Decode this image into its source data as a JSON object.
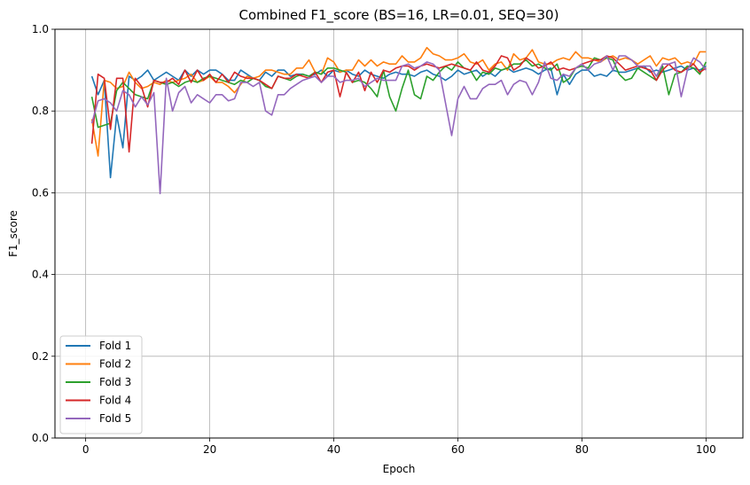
{
  "chart_data": {
    "type": "line",
    "title": "Combined F1_score (BS=16, LR=0.01, SEQ=30)",
    "xlabel": "Epoch",
    "ylabel": "F1_score",
    "xlim": [
      -4.95,
      105.95
    ],
    "ylim": [
      0.0,
      1.0
    ],
    "xticks": [
      0,
      20,
      40,
      60,
      80,
      100
    ],
    "yticks": [
      0.0,
      0.2,
      0.4,
      0.6,
      0.8,
      1.0
    ],
    "xtick_labels": [
      "0",
      "20",
      "40",
      "60",
      "80",
      "100"
    ],
    "ytick_labels": [
      "0.0",
      "0.2",
      "0.4",
      "0.6",
      "0.8",
      "1.0"
    ],
    "grid": true,
    "legend": "lower-left",
    "series": [
      {
        "name": "Fold 1",
        "color": "#1f77b4",
        "values": [
          0.885,
          0.84,
          0.875,
          0.637,
          0.79,
          0.71,
          0.885,
          0.875,
          0.885,
          0.9,
          0.875,
          0.885,
          0.895,
          0.885,
          0.875,
          0.9,
          0.885,
          0.9,
          0.89,
          0.9,
          0.9,
          0.89,
          0.875,
          0.875,
          0.9,
          0.89,
          0.88,
          0.875,
          0.895,
          0.885,
          0.9,
          0.9,
          0.885,
          0.89,
          0.89,
          0.885,
          0.89,
          0.9,
          0.885,
          0.9,
          0.895,
          0.9,
          0.89,
          0.885,
          0.9,
          0.89,
          0.885,
          0.88,
          0.89,
          0.895,
          0.89,
          0.89,
          0.885,
          0.895,
          0.9,
          0.89,
          0.885,
          0.875,
          0.885,
          0.9,
          0.89,
          0.895,
          0.9,
          0.885,
          0.895,
          0.885,
          0.9,
          0.905,
          0.895,
          0.9,
          0.905,
          0.9,
          0.89,
          0.9,
          0.905,
          0.84,
          0.89,
          0.865,
          0.89,
          0.9,
          0.9,
          0.885,
          0.89,
          0.885,
          0.9,
          0.895,
          0.895,
          0.9,
          0.905,
          0.91,
          0.895,
          0.9,
          0.895,
          0.9,
          0.905,
          0.91,
          0.9,
          0.905,
          0.9,
          0.91
        ]
      },
      {
        "name": "Fold 2",
        "color": "#ff7f0e",
        "values": [
          0.78,
          0.69,
          0.875,
          0.87,
          0.855,
          0.86,
          0.895,
          0.87,
          0.855,
          0.86,
          0.87,
          0.865,
          0.875,
          0.87,
          0.875,
          0.88,
          0.89,
          0.87,
          0.875,
          0.885,
          0.87,
          0.87,
          0.86,
          0.845,
          0.865,
          0.885,
          0.88,
          0.885,
          0.9,
          0.9,
          0.895,
          0.89,
          0.89,
          0.905,
          0.905,
          0.925,
          0.895,
          0.89,
          0.93,
          0.92,
          0.895,
          0.9,
          0.9,
          0.925,
          0.91,
          0.925,
          0.91,
          0.92,
          0.915,
          0.915,
          0.935,
          0.92,
          0.92,
          0.93,
          0.955,
          0.94,
          0.935,
          0.925,
          0.925,
          0.93,
          0.94,
          0.92,
          0.915,
          0.925,
          0.9,
          0.915,
          0.92,
          0.9,
          0.94,
          0.925,
          0.93,
          0.95,
          0.92,
          0.915,
          0.915,
          0.925,
          0.93,
          0.925,
          0.945,
          0.93,
          0.93,
          0.925,
          0.92,
          0.93,
          0.935,
          0.925,
          0.93,
          0.925,
          0.915,
          0.925,
          0.935,
          0.91,
          0.93,
          0.925,
          0.93,
          0.915,
          0.92,
          0.915,
          0.945,
          0.945
        ]
      },
      {
        "name": "Fold 3",
        "color": "#2ca02c",
        "values": [
          0.835,
          0.76,
          0.765,
          0.77,
          0.85,
          0.87,
          0.855,
          0.84,
          0.835,
          0.83,
          0.875,
          0.87,
          0.865,
          0.87,
          0.86,
          0.87,
          0.875,
          0.87,
          0.88,
          0.885,
          0.88,
          0.875,
          0.87,
          0.865,
          0.875,
          0.87,
          0.88,
          0.875,
          0.86,
          0.855,
          0.885,
          0.88,
          0.875,
          0.885,
          0.89,
          0.885,
          0.895,
          0.89,
          0.905,
          0.905,
          0.9,
          0.895,
          0.87,
          0.875,
          0.87,
          0.855,
          0.835,
          0.9,
          0.835,
          0.8,
          0.855,
          0.9,
          0.84,
          0.83,
          0.885,
          0.875,
          0.895,
          0.91,
          0.9,
          0.92,
          0.905,
          0.9,
          0.875,
          0.895,
          0.89,
          0.905,
          0.9,
          0.905,
          0.915,
          0.915,
          0.925,
          0.91,
          0.915,
          0.905,
          0.9,
          0.915,
          0.87,
          0.88,
          0.905,
          0.91,
          0.905,
          0.93,
          0.925,
          0.93,
          0.925,
          0.89,
          0.875,
          0.88,
          0.905,
          0.895,
          0.885,
          0.875,
          0.91,
          0.84,
          0.89,
          0.895,
          0.91,
          0.905,
          0.89,
          0.92
        ]
      },
      {
        "name": "Fold 4",
        "color": "#d62728",
        "values": [
          0.72,
          0.89,
          0.88,
          0.755,
          0.88,
          0.88,
          0.7,
          0.88,
          0.86,
          0.81,
          0.875,
          0.87,
          0.87,
          0.88,
          0.865,
          0.9,
          0.87,
          0.9,
          0.875,
          0.89,
          0.87,
          0.89,
          0.87,
          0.895,
          0.885,
          0.88,
          0.88,
          0.875,
          0.865,
          0.855,
          0.885,
          0.88,
          0.88,
          0.89,
          0.885,
          0.88,
          0.895,
          0.87,
          0.895,
          0.9,
          0.835,
          0.895,
          0.87,
          0.895,
          0.85,
          0.895,
          0.87,
          0.9,
          0.895,
          0.905,
          0.91,
          0.91,
          0.9,
          0.91,
          0.915,
          0.91,
          0.905,
          0.91,
          0.915,
          0.91,
          0.905,
          0.9,
          0.92,
          0.9,
          0.895,
          0.91,
          0.935,
          0.93,
          0.9,
          0.91,
          0.93,
          0.92,
          0.905,
          0.91,
          0.92,
          0.9,
          0.905,
          0.9,
          0.905,
          0.915,
          0.92,
          0.925,
          0.925,
          0.935,
          0.93,
          0.915,
          0.9,
          0.905,
          0.91,
          0.905,
          0.9,
          0.875,
          0.9,
          0.915,
          0.9,
          0.895,
          0.905,
          0.915,
          0.895,
          0.905
        ]
      },
      {
        "name": "Fold 5",
        "color": "#9467bd",
        "values": [
          0.77,
          0.825,
          0.83,
          0.82,
          0.8,
          0.85,
          0.84,
          0.81,
          0.835,
          0.815,
          0.845,
          0.598,
          0.88,
          0.8,
          0.845,
          0.86,
          0.82,
          0.84,
          0.83,
          0.82,
          0.84,
          0.84,
          0.825,
          0.83,
          0.87,
          0.87,
          0.86,
          0.87,
          0.8,
          0.79,
          0.84,
          0.84,
          0.855,
          0.865,
          0.875,
          0.88,
          0.885,
          0.87,
          0.885,
          0.885,
          0.87,
          0.875,
          0.875,
          0.88,
          0.86,
          0.87,
          0.88,
          0.875,
          0.875,
          0.875,
          0.91,
          0.915,
          0.905,
          0.91,
          0.92,
          0.915,
          0.9,
          0.82,
          0.74,
          0.83,
          0.86,
          0.83,
          0.83,
          0.855,
          0.865,
          0.865,
          0.875,
          0.84,
          0.865,
          0.875,
          0.87,
          0.84,
          0.87,
          0.92,
          0.88,
          0.875,
          0.89,
          0.885,
          0.905,
          0.915,
          0.9,
          0.915,
          0.92,
          0.935,
          0.9,
          0.935,
          0.935,
          0.925,
          0.91,
          0.91,
          0.91,
          0.885,
          0.915,
          0.915,
          0.92,
          0.835,
          0.9,
          0.93,
          0.92,
          0.9
        ]
      }
    ]
  }
}
